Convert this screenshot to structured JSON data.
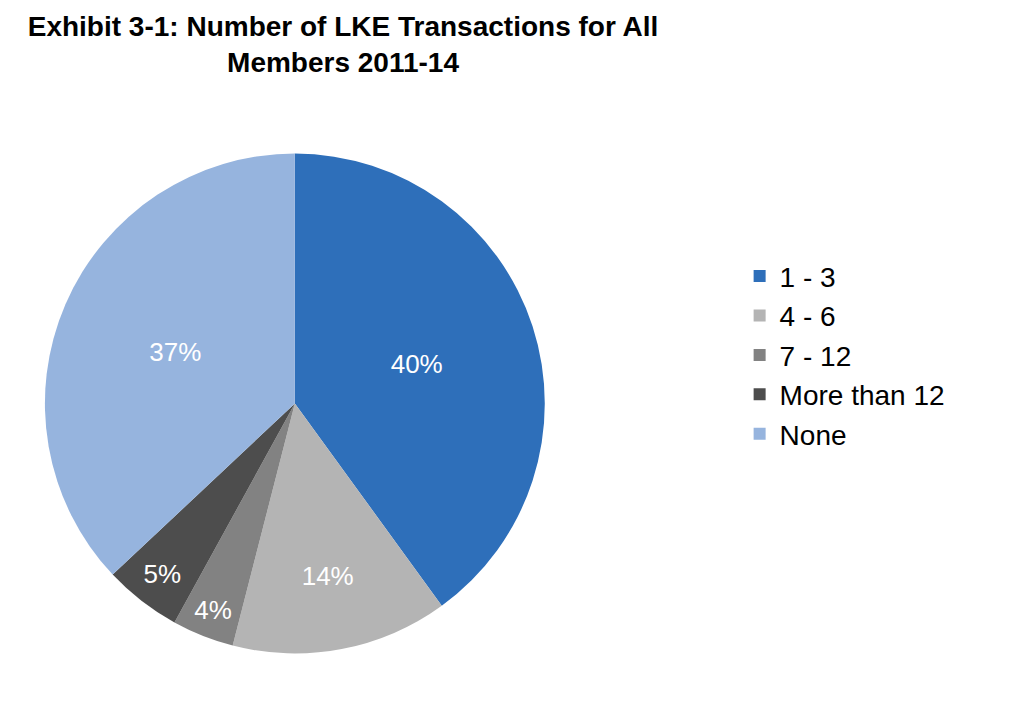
{
  "chart_data": {
    "type": "pie",
    "title": "Exhibit 3-1: Number of LKE Transactions for All Members 2011-14",
    "categories": [
      "1 - 3",
      "4 - 6",
      "7 - 12",
      "More than 12",
      "None"
    ],
    "values": [
      40,
      14,
      4,
      5,
      37
    ],
    "value_labels": [
      "40%",
      "14%",
      "4%",
      "5%",
      "37%"
    ],
    "colors": [
      "#2e6fba",
      "#b4b4b4",
      "#828282",
      "#4d4d4d",
      "#96b4de"
    ],
    "data_labels": true,
    "legend": "right"
  }
}
